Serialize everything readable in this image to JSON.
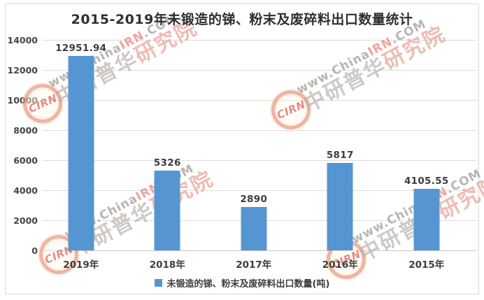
{
  "title": "2015-2019年未锻造的锑、粉末及废碎料出口数量统计",
  "chart_data": {
    "type": "bar",
    "title": "2015-2019年未锻造的锑、粉末及废碎料出口数量统计",
    "categories": [
      "2019年",
      "2018年",
      "2017年",
      "2016年",
      "2015年"
    ],
    "values": [
      12951.94,
      5326,
      2890,
      5817,
      4105.55
    ],
    "value_labels": [
      "12951.94",
      "5326",
      "2890",
      "5817",
      "4105.55"
    ],
    "y_ticks": [
      14000,
      12000,
      10000,
      8000,
      6000,
      4000,
      2000,
      0
    ],
    "y_tick_labels": [
      "14000",
      "12000",
      "10000",
      "8000",
      "6000",
      "4000",
      "2000",
      "0"
    ],
    "ylim": [
      0,
      14000
    ],
    "xlabel": "",
    "ylabel": "",
    "grid": true,
    "legend_position": "bottom",
    "legend": "未锻造的锑、粉末及废碎料出口数量(吨)",
    "bar_color": "#5596d2"
  },
  "legend": {
    "label": "未锻造的锑、粉末及废碎料出口数量(吨)"
  },
  "watermark": {
    "logo_text": "CIRN",
    "url_prefix": "www.China",
    "url_highlight": "IRN",
    "url_suffix": ".COM",
    "org_part1": "中研普华",
    "org_part2": "研究院"
  }
}
